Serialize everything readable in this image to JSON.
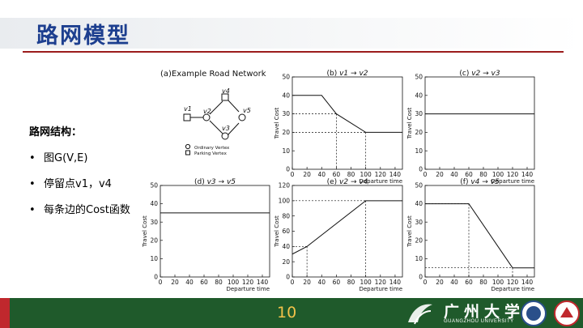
{
  "slide": {
    "title": "路网模型",
    "page_number": "10",
    "university_cn": "广州大学",
    "university_en": "GUANGZHOU UNIVERSITY"
  },
  "bullets": {
    "heading": "路网结构：",
    "items": [
      "图G(V,E)",
      "停留点v1，v4",
      "每条边的Cost函数"
    ],
    "marker": "•"
  },
  "network": {
    "title": "(a)Example Road Network",
    "nodes": [
      "v1",
      "v2",
      "v3",
      "v4",
      "v5"
    ],
    "legend": [
      "Ordinary Vertex",
      "Parking Vertex"
    ]
  },
  "chart_data": [
    {
      "id": "b",
      "type": "line",
      "label": "(b)",
      "from": "v1",
      "to": "v2",
      "x": [
        0,
        40,
        60,
        100,
        150
      ],
      "y": [
        40,
        40,
        30,
        20,
        20
      ],
      "xlim": [
        0,
        150
      ],
      "ylim": [
        0,
        50
      ],
      "xticks": [
        0,
        20,
        40,
        60,
        80,
        100,
        120,
        140
      ],
      "yticks": [
        0,
        10,
        20,
        30,
        40,
        50
      ],
      "xlabel": "Departure time",
      "ylabel": "Travel Cost",
      "guides": [
        {
          "x": 60,
          "y": 30
        },
        {
          "x": 100,
          "y": 20
        }
      ]
    },
    {
      "id": "c",
      "type": "line",
      "label": "(c)",
      "from": "v2",
      "to": "v3",
      "x": [
        0,
        150
      ],
      "y": [
        30,
        30
      ],
      "xlim": [
        0,
        150
      ],
      "ylim": [
        0,
        50
      ],
      "xticks": [
        0,
        20,
        40,
        60,
        80,
        100,
        120,
        140
      ],
      "yticks": [
        0,
        10,
        20,
        30,
        40,
        50
      ],
      "xlabel": "Departure time",
      "ylabel": "Travel Cost",
      "guides": []
    },
    {
      "id": "d",
      "type": "line",
      "label": "(d)",
      "from": "v3",
      "to": "v5",
      "x": [
        0,
        150
      ],
      "y": [
        35,
        35
      ],
      "xlim": [
        0,
        150
      ],
      "ylim": [
        0,
        50
      ],
      "xticks": [
        0,
        20,
        40,
        60,
        80,
        100,
        120,
        140
      ],
      "yticks": [
        0,
        10,
        20,
        30,
        40,
        50
      ],
      "xlabel": "Departure time",
      "ylabel": "Travel Cost",
      "guides": []
    },
    {
      "id": "e",
      "type": "line",
      "label": "(e)",
      "from": "v2",
      "to": "v4",
      "x": [
        0,
        20,
        100,
        150
      ],
      "y": [
        30,
        40,
        100,
        100
      ],
      "xlim": [
        0,
        150
      ],
      "ylim": [
        0,
        120
      ],
      "xticks": [
        0,
        20,
        40,
        60,
        80,
        100,
        120,
        140
      ],
      "yticks": [
        0,
        20,
        40,
        60,
        80,
        100,
        120
      ],
      "xlabel": "Departure time",
      "ylabel": "Travel Cost",
      "guides": [
        {
          "x": 20,
          "y": 40
        },
        {
          "x": 100,
          "y": 100
        }
      ]
    },
    {
      "id": "f",
      "type": "line",
      "label": "(f)",
      "from": "v4",
      "to": "v5",
      "x": [
        0,
        60,
        120,
        150
      ],
      "y": [
        40,
        40,
        5,
        5
      ],
      "xlim": [
        0,
        150
      ],
      "ylim": [
        0,
        50
      ],
      "xticks": [
        0,
        20,
        40,
        60,
        80,
        100,
        120,
        140
      ],
      "yticks": [
        0,
        10,
        20,
        30,
        40,
        50
      ],
      "xlabel": "Departure time",
      "ylabel": "Travel Cost",
      "guides": [
        {
          "x": 60,
          "y": 40
        },
        {
          "x": 120,
          "y": 5
        }
      ]
    }
  ],
  "colors": {
    "title": "#1d3f8f",
    "rule": "#9b1c1c",
    "footer_green": "#1f5a2b",
    "footer_red": "#c0282d",
    "page_number": "#f2c24a"
  }
}
